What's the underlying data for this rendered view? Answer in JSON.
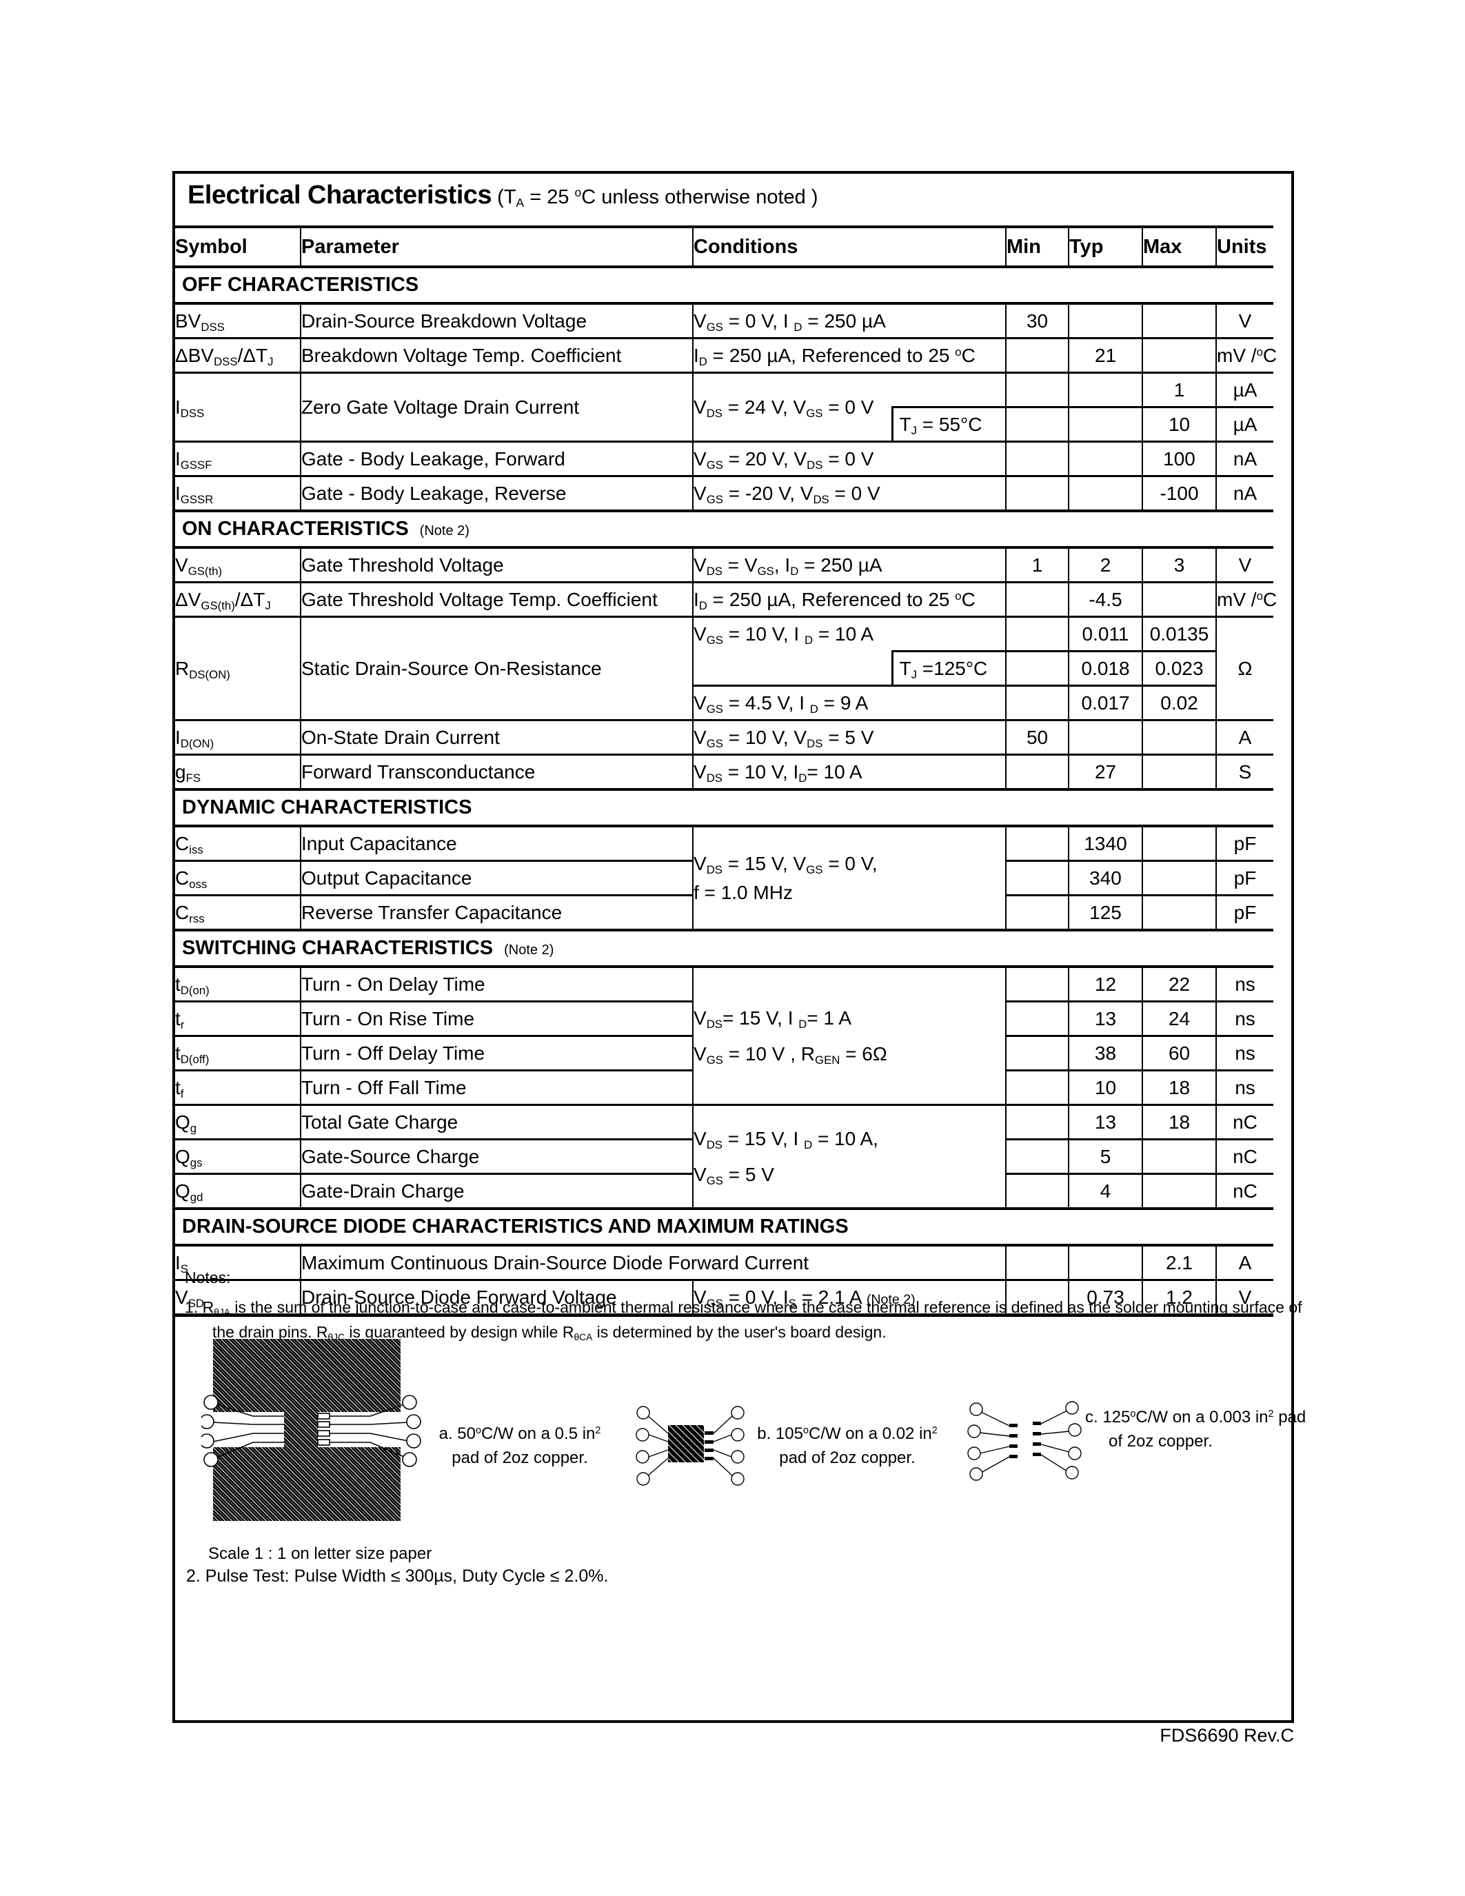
{
  "title": {
    "main": "Electrical Characteristics",
    "note": [
      {
        "t": "(T"
      },
      {
        "sub": "A"
      },
      {
        "t": " = 25 "
      },
      {
        "sup": "o"
      },
      {
        "t": "C unless otherwise noted )"
      }
    ]
  },
  "table": {
    "headers": {
      "symbol": "Symbol",
      "parameter": "Parameter",
      "conditions": "Conditions",
      "min": "Min",
      "typ": "Typ",
      "max": "Max",
      "units": "Units"
    },
    "sections": {
      "off": {
        "label": "OFF CHARACTERISTICS",
        "note": ""
      },
      "on": {
        "label": "ON CHARACTERISTICS",
        "note": "(Note 2)"
      },
      "dynamic": {
        "label": "DYNAMIC  CHARACTERISTICS",
        "note": ""
      },
      "switching": {
        "label": "SWITCHING  CHARACTERISTICS",
        "note": "(Note 2)"
      },
      "diode": {
        "label": "DRAIN-SOURCE DIODE CHARACTERISTICS AND MAXIMUM RATINGS",
        "note": ""
      }
    },
    "rows": {
      "bvdss": {
        "symbol": [
          {
            "t": "BV"
          },
          {
            "sub": "DSS"
          }
        ],
        "parameter": "Drain-Source Breakdown Voltage",
        "conditions": [
          {
            "t": "V"
          },
          {
            "sub": "GS"
          },
          {
            "t": " = 0 V,  I "
          },
          {
            "sub": "D"
          },
          {
            "t": " = 250 µA"
          }
        ],
        "min": "30",
        "units": "V"
      },
      "dbvdss": {
        "symbol": [
          {
            "t": "ΔBV"
          },
          {
            "sub": "DSS"
          },
          {
            "t": "/ΔT"
          },
          {
            "sub": "J"
          }
        ],
        "parameter": "Breakdown Voltage Temp. Coefficient",
        "conditions": [
          {
            "t": "I"
          },
          {
            "sub": "D"
          },
          {
            "t": " = 250 µA, Referenced to  25 "
          },
          {
            "sup": "o"
          },
          {
            "t": "C"
          }
        ],
        "typ": "21",
        "units": [
          {
            "t": "mV /"
          },
          {
            "sup": "o"
          },
          {
            "t": "C"
          }
        ]
      },
      "idss": {
        "symbol": [
          {
            "t": "I"
          },
          {
            "sub": "DSS"
          }
        ],
        "parameter": "Zero Gate Voltage  Drain Current",
        "conditions": [
          {
            "t": "V"
          },
          {
            "sub": "DS"
          },
          {
            "t": " = 24 V,  V"
          },
          {
            "sub": "GS"
          },
          {
            "t": " = 0 V"
          }
        ],
        "sub_condition": [
          {
            "t": "T"
          },
          {
            "sub": "J"
          },
          {
            "t": " = 55°C"
          }
        ],
        "max_a": "1",
        "units_a": "µA",
        "max_b": "10",
        "units_b": "µA"
      },
      "igssf": {
        "symbol": [
          {
            "t": "I"
          },
          {
            "sub": "GSSF"
          }
        ],
        "parameter": "Gate - Body Leakage, Forward",
        "conditions": [
          {
            "t": "V"
          },
          {
            "sub": "GS"
          },
          {
            "t": " =  20 V, V"
          },
          {
            "sub": "DS"
          },
          {
            "t": " =  0 V"
          }
        ],
        "max": "100",
        "units": "nA"
      },
      "igssr": {
        "symbol": [
          {
            "t": "I"
          },
          {
            "sub": "GSSR"
          }
        ],
        "parameter": "Gate - Body Leakage, Reverse",
        "conditions": [
          {
            "t": "V"
          },
          {
            "sub": "GS"
          },
          {
            "t": " =  -20 V, V"
          },
          {
            "sub": "DS"
          },
          {
            "t": " =  0 V"
          }
        ],
        "max": "-100",
        "units": "nA"
      },
      "vgsth": {
        "symbol": [
          {
            "t": "V"
          },
          {
            "sub": "GS(th)"
          }
        ],
        "parameter": "Gate Threshold Voltage",
        "conditions": [
          {
            "t": "V"
          },
          {
            "sub": "DS"
          },
          {
            "t": " = V"
          },
          {
            "sub": "GS"
          },
          {
            "t": ",  I"
          },
          {
            "sub": "D"
          },
          {
            "t": " = 250 µA"
          }
        ],
        "min": "1",
        "typ": "2",
        "max": "3",
        "units": "V"
      },
      "dvgsth": {
        "symbol": [
          {
            "t": "ΔV"
          },
          {
            "sub": "GS(th)"
          },
          {
            "t": "/ΔT"
          },
          {
            "sub": "J"
          }
        ],
        "parameter": "Gate Threshold Voltage Temp. Coefficient",
        "conditions": [
          {
            "t": "I"
          },
          {
            "sub": "D"
          },
          {
            "t": " = 250 µA, Referenced to  25 "
          },
          {
            "sup": "o"
          },
          {
            "t": "C"
          }
        ],
        "typ": "-4.5",
        "units": [
          {
            "t": "mV /"
          },
          {
            "sup": "o"
          },
          {
            "t": "C"
          }
        ]
      },
      "rdson": {
        "symbol": [
          {
            "t": "R"
          },
          {
            "sub": "DS(ON)"
          }
        ],
        "parameter": "Static Drain-Source On-Resistance",
        "cond_a": [
          {
            "t": "V"
          },
          {
            "sub": "GS"
          },
          {
            "t": " = 10 V,  I "
          },
          {
            "sub": "D"
          },
          {
            "t": " = 10 A"
          }
        ],
        "sub_condition": [
          {
            "t": "T"
          },
          {
            "sub": "J"
          },
          {
            "t": " =125°C"
          }
        ],
        "cond_c": [
          {
            "t": "V"
          },
          {
            "sub": "GS"
          },
          {
            "t": " = 4.5 V,  I "
          },
          {
            "sub": "D"
          },
          {
            "t": " = 9 A"
          }
        ],
        "typ_a": "0.011",
        "max_a": "0.0135",
        "typ_b": "0.018",
        "max_b": "0.023",
        "typ_c": "0.017",
        "max_c": "0.02",
        "units": "Ω"
      },
      "idon": {
        "symbol": [
          {
            "t": "I"
          },
          {
            "sub": "D(ON)"
          }
        ],
        "parameter": "On-State Drain Current",
        "conditions": [
          {
            "t": "V"
          },
          {
            "sub": "GS"
          },
          {
            "t": " = 10 V,  V"
          },
          {
            "sub": "DS"
          },
          {
            "t": " = 5 V"
          }
        ],
        "min": "50",
        "units": "A"
      },
      "gfs": {
        "symbol": [
          {
            "t": "g"
          },
          {
            "sub": "FS"
          }
        ],
        "parameter": "Forward Transconductance",
        "conditions": [
          {
            "t": "V"
          },
          {
            "sub": "DS"
          },
          {
            "t": " = 10 V,  I"
          },
          {
            "sub": "D"
          },
          {
            "t": "= 10 A"
          }
        ],
        "typ": "27",
        "units": "S"
      },
      "ciss": {
        "symbol": [
          {
            "t": "C"
          },
          {
            "sub": "iss"
          }
        ],
        "parameter": "Input Capacitance",
        "cond_line1": [
          {
            "t": "V"
          },
          {
            "sub": "DS"
          },
          {
            "t": " = 15 V,  V"
          },
          {
            "sub": "GS"
          },
          {
            "t": " = 0 V,"
          }
        ],
        "cond_line2": [
          {
            "t": "f  = 1.0 MHz"
          }
        ],
        "typ": "1340",
        "units": "pF"
      },
      "coss": {
        "symbol": [
          {
            "t": "C"
          },
          {
            "sub": "oss"
          }
        ],
        "parameter": "Output Capacitance",
        "typ": "340",
        "units": "pF"
      },
      "crss": {
        "symbol": [
          {
            "t": "C"
          },
          {
            "sub": "rss"
          }
        ],
        "parameter": "Reverse Transfer Capacitance",
        "typ": "125",
        "units": "pF"
      },
      "tdon": {
        "symbol": [
          {
            "t": "t"
          },
          {
            "sub": "D(on)"
          }
        ],
        "parameter": "Turn - On Delay Time",
        "cond_line1": [
          {
            "t": "V"
          },
          {
            "sub": "DS"
          },
          {
            "t": "= 15 V,  I "
          },
          {
            "sub": "D"
          },
          {
            "t": "= 1 A"
          }
        ],
        "cond_line2": [
          {
            "t": "V"
          },
          {
            "sub": "GS"
          },
          {
            "t": " = 10 V ,  R"
          },
          {
            "sub": "GEN"
          },
          {
            "t": " = 6Ω"
          }
        ],
        "typ": "12",
        "max": "22",
        "units": "ns"
      },
      "tr": {
        "symbol": [
          {
            "t": "t"
          },
          {
            "sub": "r"
          }
        ],
        "parameter": "Turn - On Rise Time",
        "typ": "13",
        "max": "24",
        "units": "ns"
      },
      "tdoff": {
        "symbol": [
          {
            "t": "t"
          },
          {
            "sub": "D(off)"
          }
        ],
        "parameter": "Turn - Off Delay Time",
        "typ": "38",
        "max": "60",
        "units": "ns"
      },
      "tf": {
        "symbol": [
          {
            "t": "t"
          },
          {
            "sub": "f"
          }
        ],
        "parameter": "Turn - Off Fall Time",
        "typ": "10",
        "max": "18",
        "units": "ns"
      },
      "qg": {
        "symbol": [
          {
            "t": "Q"
          },
          {
            "sub": "g"
          }
        ],
        "parameter": "Total Gate Charge",
        "cond_line1": [
          {
            "t": "V"
          },
          {
            "sub": "DS"
          },
          {
            "t": " = 15 V,  I "
          },
          {
            "sub": "D"
          },
          {
            "t": " = 10 A,"
          }
        ],
        "cond_line2": [
          {
            "t": "V"
          },
          {
            "sub": "GS"
          },
          {
            "t": " = 5 V"
          }
        ],
        "typ": "13",
        "max": "18",
        "units": "nC"
      },
      "qgs": {
        "symbol": [
          {
            "t": "Q"
          },
          {
            "sub": "gs"
          }
        ],
        "parameter": "Gate-Source Charge",
        "typ": "5",
        "units": "nC"
      },
      "qgd": {
        "symbol": [
          {
            "t": "Q"
          },
          {
            "sub": "gd"
          }
        ],
        "parameter": "Gate-Drain Charge",
        "typ": "4",
        "units": "nC"
      },
      "is": {
        "symbol": [
          {
            "t": "I"
          },
          {
            "sub": "S"
          }
        ],
        "parameter": "Maximum Continuous Drain-Source Diode Forward Current",
        "max": "2.1",
        "units": "A"
      },
      "vsd": {
        "symbol": [
          {
            "t": "V"
          },
          {
            "sub": "SD"
          }
        ],
        "parameter": "Drain-Source Diode Forward Voltage",
        "conditions": [
          {
            "t": "V"
          },
          {
            "sub": "GS"
          },
          {
            "t": " = 0 V,  I"
          },
          {
            "sub": "S"
          },
          {
            "t": " = 2.1 A   "
          },
          {
            "small": "(Note 2)"
          }
        ],
        "typ": "0.73",
        "max": "1.2",
        "units": "V"
      }
    }
  },
  "notes": {
    "title": "Notes:",
    "note1": [
      {
        "t": "1.   R"
      },
      {
        "sub": "θJA"
      },
      {
        "t": " is the sum of the junction-to-case and case-to-ambient thermal resistance where the case thermal reference is defined as  the  solder  mounting surface of the drain pins. R"
      },
      {
        "sub": "θJC"
      },
      {
        "t": " is guaranteed by design while R"
      },
      {
        "sub": "θCA"
      },
      {
        "t": " is determined by the user's board design."
      }
    ],
    "scale_note": "Scale 1 : 1 on letter size paper",
    "note2": "2. Pulse Test: Pulse Width ≤ 300µs, Duty Cycle ≤ 2.0%."
  },
  "figures": {
    "a": {
      "line1": [
        {
          "t": "a. 50"
        },
        {
          "sup": "o"
        },
        {
          "t": "C/W on a 0.5 in"
        },
        {
          "sup": "2"
        }
      ],
      "line2": "pad of 2oz copper."
    },
    "b": {
      "line1": [
        {
          "t": "b. 105"
        },
        {
          "sup": "o"
        },
        {
          "t": "C/W on a 0.02 in"
        },
        {
          "sup": "2"
        }
      ],
      "line2": "pad of 2oz copper."
    },
    "c": {
      "line1": [
        {
          "t": "c. 125"
        },
        {
          "sup": "o"
        },
        {
          "t": "C/W on a 0.003 in"
        },
        {
          "sup": "2"
        },
        {
          "t": " pad"
        }
      ],
      "line2": "of 2oz copper."
    }
  },
  "footer": {
    "text": "FDS6690 Rev.C"
  }
}
